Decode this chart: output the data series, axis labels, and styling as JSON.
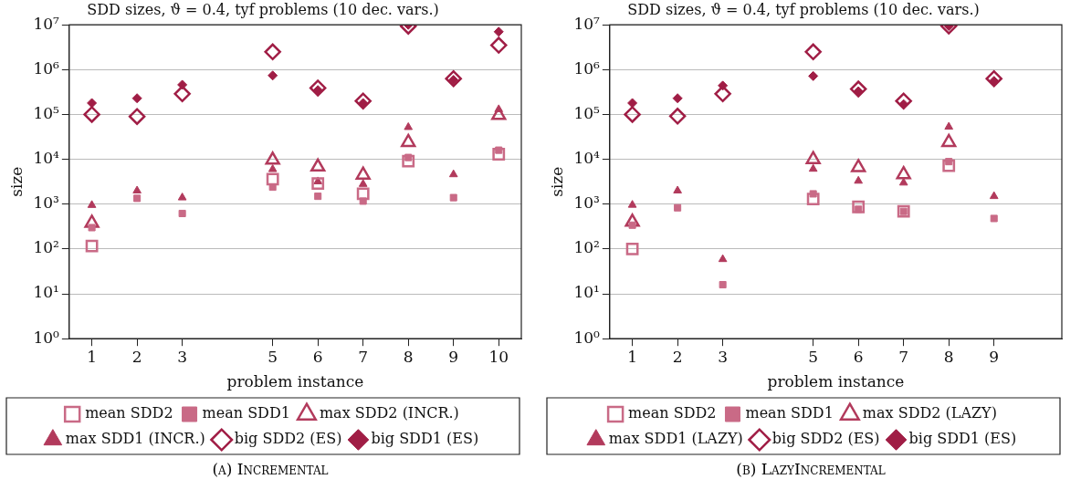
{
  "chart_data": [
    {
      "type": "scatter",
      "title": "SDD sizes, ϑ = 0.4, tyf problems (10 dec. vars.)",
      "xlabel": "problem instance",
      "ylabel": "size",
      "log": "y",
      "grid": "y",
      "legend": "bottom",
      "xlim": [
        0.5,
        10.5
      ],
      "xticks": [
        1,
        2,
        3,
        5,
        6,
        7,
        8,
        9,
        10
      ],
      "ylim": [
        1,
        10000000
      ],
      "yticks": [
        {
          "value": 1,
          "label": "10⁰"
        },
        {
          "value": 10,
          "label": "10¹"
        },
        {
          "value": 100,
          "label": "10²"
        },
        {
          "value": 1000,
          "label": "10³"
        },
        {
          "value": 10000,
          "label": "10⁴"
        },
        {
          "value": 100000,
          "label": "10⁵"
        },
        {
          "value": 1000000,
          "label": "10⁶"
        },
        {
          "value": 10000000,
          "label": "10⁷"
        }
      ],
      "x": [
        1,
        2,
        3,
        5,
        6,
        7,
        8,
        9,
        10
      ],
      "series": [
        {
          "name": "big SDD1 (ES)",
          "color": "#a01d45",
          "marker": "diamond",
          "values": [
            180000,
            230000,
            460000,
            740000,
            350000,
            180000,
            10000000,
            590000,
            7000000
          ]
        },
        {
          "name": "big SDD2 (ES)",
          "color": "#a01d45",
          "marker": "diamond",
          "values": [
            100000,
            90000,
            290000,
            2500000,
            390000,
            200000,
            9300000,
            630000,
            3500000
          ]
        },
        {
          "name": "max SDD1 (INCR.)",
          "color": "#b23a5c",
          "marker": "triangle",
          "values": [
            950,
            2000,
            1400,
            6000,
            3200,
            2800,
            52000,
            4600,
            130000
          ]
        },
        {
          "name": "max SDD2 (INCR.)",
          "color": "#b23a5c",
          "marker": "triangle",
          "values": [
            380,
            null,
            null,
            9700,
            6800,
            4500,
            24000,
            null,
            96000
          ]
        },
        {
          "name": "mean SDD1",
          "color": "#c96a86",
          "marker": "square",
          "values": [
            300,
            1350,
            620,
            2400,
            1500,
            1170,
            11000,
            1400,
            16000
          ]
        },
        {
          "name": "mean SDD2",
          "color": "#c96a86",
          "marker": "square",
          "values": [
            117,
            null,
            null,
            3600,
            2900,
            1700,
            9100,
            null,
            13000
          ]
        }
      ],
      "annotations": [
        "(a) Incremental"
      ]
    },
    {
      "type": "scatter",
      "title": "SDD sizes, ϑ = 0.4, tyf problems (10 dec. vars.)",
      "xlabel": "problem instance",
      "ylabel": "size",
      "log": "y",
      "grid": "y",
      "legend": "bottom",
      "xlim": [
        0.5,
        10.5
      ],
      "xticks": [
        1,
        2,
        3,
        5,
        6,
        7,
        8,
        9
      ],
      "ylim": [
        1,
        10000000
      ],
      "yticks": [
        {
          "value": 1,
          "label": "10⁰"
        },
        {
          "value": 10,
          "label": "10¹"
        },
        {
          "value": 100,
          "label": "10²"
        },
        {
          "value": 1000,
          "label": "10³"
        },
        {
          "value": 10000,
          "label": "10⁴"
        },
        {
          "value": 100000,
          "label": "10⁵"
        },
        {
          "value": 1000000,
          "label": "10⁶"
        },
        {
          "value": 10000000,
          "label": "10⁷"
        }
      ],
      "x": [
        1,
        2,
        3,
        5,
        6,
        7,
        8,
        9
      ],
      "series": [
        {
          "name": "big SDD1 (ES)",
          "color": "#a01d45",
          "marker": "diamond",
          "values": [
            180000,
            230000,
            440000,
            720000,
            330000,
            170000,
            9400000,
            560000
          ]
        },
        {
          "name": "big SDD2 (ES)",
          "color": "#a01d45",
          "marker": "diamond",
          "values": [
            100000,
            92000,
            290000,
            2500000,
            370000,
            200000,
            9400000,
            630000
          ]
        },
        {
          "name": "max SDD1 (LAZY)",
          "color": "#b23a5c",
          "marker": "triangle",
          "values": [
            960,
            2000,
            59,
            6100,
            3300,
            3000,
            53000,
            1500
          ]
        },
        {
          "name": "max SDD2 (LAZY)",
          "color": "#b23a5c",
          "marker": "triangle",
          "values": [
            400,
            null,
            null,
            10000,
            6600,
            4600,
            24000,
            null
          ]
        },
        {
          "name": "mean SDD1",
          "color": "#c96a86",
          "marker": "square",
          "values": [
            340,
            830,
            16,
            1700,
            770,
            690,
            8900,
            480
          ]
        },
        {
          "name": "mean SDD2",
          "color": "#c96a86",
          "marker": "square",
          "values": [
            100,
            null,
            null,
            1300,
            870,
            690,
            7200,
            null
          ]
        }
      ],
      "annotations": [
        "(b) LazyIncremental"
      ]
    }
  ]
}
